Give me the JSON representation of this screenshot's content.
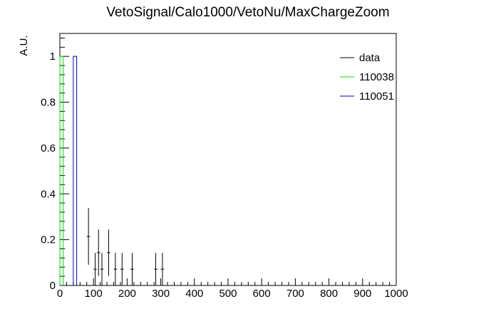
{
  "chart_data": {
    "type": "histogram",
    "title": "VetoSignal/Calo1000/VetoNu/MaxChargeZoom",
    "xlabel": "",
    "ylabel": "A.U.",
    "xlim": [
      0,
      1000
    ],
    "ylim": [
      0,
      1.1
    ],
    "x_ticks": [
      0,
      100,
      200,
      300,
      400,
      500,
      600,
      700,
      800,
      900,
      1000
    ],
    "y_ticks": [
      0,
      0.2,
      0.4,
      0.6,
      0.8,
      1
    ],
    "x_tick_labels": [
      "0",
      "100",
      "200",
      "300",
      "400",
      "500",
      "600",
      "700",
      "800",
      "900",
      "1000"
    ],
    "y_tick_labels": [
      "0",
      "0.2",
      "0.4",
      "0.6",
      "0.8",
      "1"
    ],
    "legend_position": "top-right",
    "series": [
      {
        "name": "data",
        "style": "points",
        "color": "#000000",
        "bin_width": 10,
        "points": [
          {
            "x": 5,
            "y": 0.0,
            "err": 0.0
          },
          {
            "x": 85,
            "y": 0.214,
            "err": 0.124
          },
          {
            "x": 105,
            "y": 0.071,
            "err": 0.071
          },
          {
            "x": 115,
            "y": 0.143,
            "err": 0.101
          },
          {
            "x": 125,
            "y": 0.071,
            "err": 0.071
          },
          {
            "x": 145,
            "y": 0.143,
            "err": 0.101
          },
          {
            "x": 165,
            "y": 0.071,
            "err": 0.071
          },
          {
            "x": 185,
            "y": 0.071,
            "err": 0.071
          },
          {
            "x": 215,
            "y": 0.071,
            "err": 0.071
          },
          {
            "x": 285,
            "y": 0.071,
            "err": 0.071
          },
          {
            "x": 305,
            "y": 0.071,
            "err": 0.071
          }
        ]
      },
      {
        "name": "110038",
        "style": "histogram",
        "color": "#00dd00",
        "bins": [
          {
            "x0": 0,
            "x1": 10,
            "y": 1.0
          }
        ]
      },
      {
        "name": "110051",
        "style": "histogram",
        "color": "#0000cc",
        "bins": [
          {
            "x0": 40,
            "x1": 50,
            "y": 1.0
          }
        ]
      }
    ]
  }
}
